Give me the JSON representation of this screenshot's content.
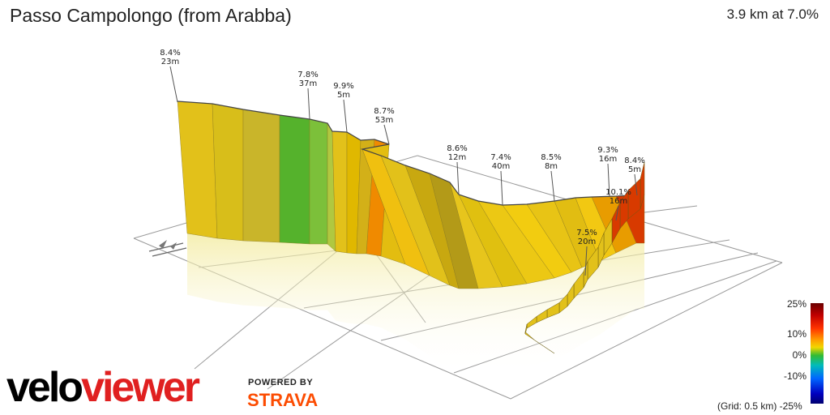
{
  "header": {
    "title": "Passo Campolongo (from Arabba)",
    "stats": "3.9 km at 7.0%"
  },
  "branding": {
    "velo": "velo",
    "viewer": "viewer",
    "powered_by": "POWERED BY",
    "strava": "STRAVA"
  },
  "footer": {
    "grid_note": "(Grid: 0.5 km) -25%"
  },
  "colors": {
    "wall_default": "#e2c11a",
    "wall_green": "#55b22c",
    "wall_orange": "#f08a00",
    "wall_red": "#d83a00",
    "grid": "#9a9a9a",
    "label_line": "#555555"
  },
  "chart_data": {
    "type": "area",
    "title": "Passo Campolongo (from Arabba)",
    "summary": "3.9 km at 7.0%",
    "grid": "0.5 km",
    "annotations": [
      {
        "grade": "8.4%",
        "length": "23m"
      },
      {
        "grade": "7.8%",
        "length": "37m"
      },
      {
        "grade": "9.9%",
        "length": "5m"
      },
      {
        "grade": "8.7%",
        "length": "53m"
      },
      {
        "grade": "8.6%",
        "length": "12m"
      },
      {
        "grade": "7.4%",
        "length": "40m"
      },
      {
        "grade": "8.5%",
        "length": "8m"
      },
      {
        "grade": "9.3%",
        "length": "16m"
      },
      {
        "grade": "8.4%",
        "length": "5m"
      },
      {
        "grade": "10.1%",
        "length": "16m"
      },
      {
        "grade": "7.5%",
        "length": "20m"
      }
    ],
    "color_scale": {
      "ticks": [
        "25%",
        "10%",
        "0%",
        "-10%"
      ],
      "min_label": "-25%"
    }
  }
}
